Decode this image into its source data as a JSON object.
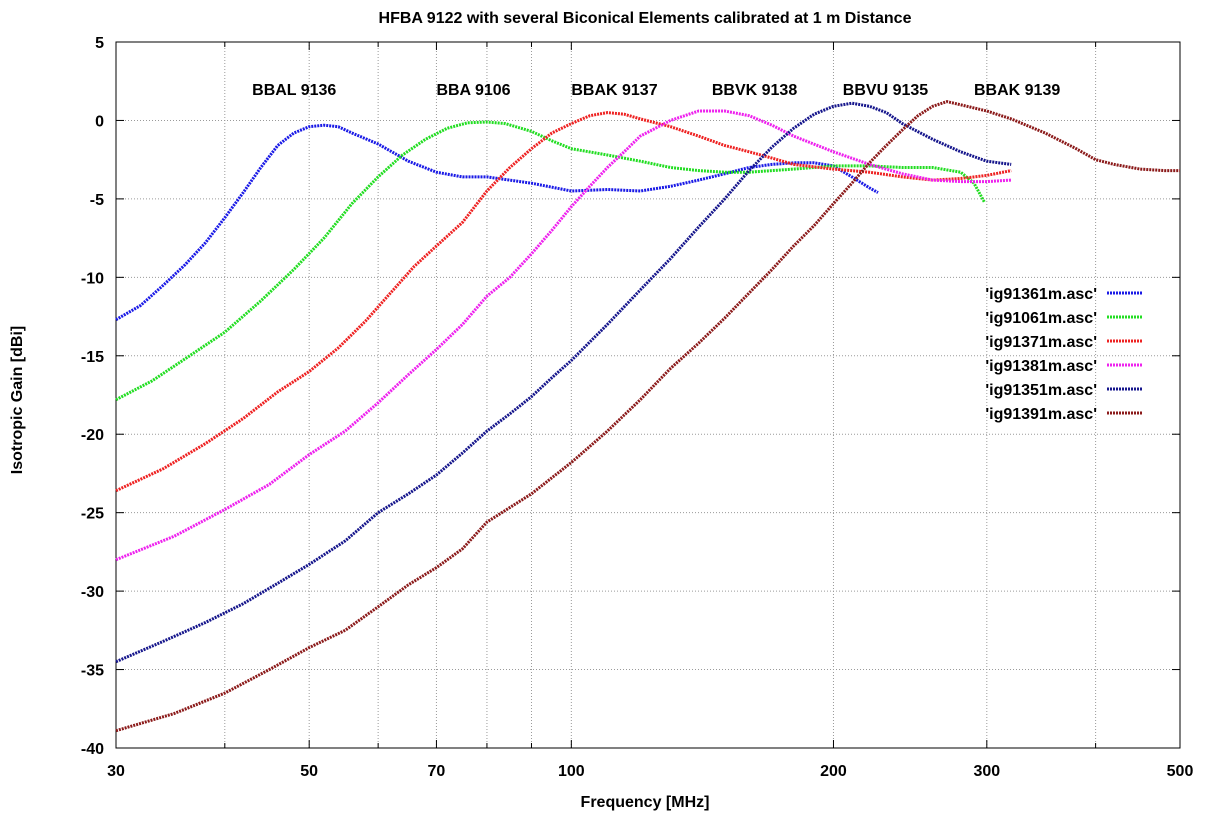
{
  "chart_data": {
    "type": "line",
    "title": "HFBA 9122 with several Biconical Elements calibrated at 1 m Distance",
    "xlabel": "Frequency [MHz]",
    "ylabel": "Isotropic Gain [dBi]",
    "xscale": "log",
    "xlim": [
      30,
      500
    ],
    "ylim": [
      -40,
      5
    ],
    "grid": true,
    "legend_position": "right",
    "x_major_ticks": [
      {
        "value": 30,
        "label": "30"
      },
      {
        "value": 50,
        "label": "50"
      },
      {
        "value": 70,
        "label": "70"
      },
      {
        "value": 100,
        "label": "100"
      },
      {
        "value": 200,
        "label": "200"
      },
      {
        "value": 300,
        "label": "300"
      },
      {
        "value": 500,
        "label": "500"
      }
    ],
    "x_minor_gridlines": [
      40,
      60,
      80,
      90,
      400
    ],
    "y_ticks": [
      {
        "value": 5,
        "label": "5"
      },
      {
        "value": 0,
        "label": "0"
      },
      {
        "value": -5,
        "label": "-5"
      },
      {
        "value": -10,
        "label": "-10"
      },
      {
        "value": -15,
        "label": "-15"
      },
      {
        "value": -20,
        "label": "-20"
      },
      {
        "value": -25,
        "label": "-25"
      },
      {
        "value": -30,
        "label": "-30"
      },
      {
        "value": -35,
        "label": "-35"
      },
      {
        "value": -40,
        "label": "-40"
      }
    ],
    "annotations": [
      {
        "text": "BBAL 9136",
        "x": 43,
        "y": 2
      },
      {
        "text": "BBA 9106",
        "x": 70,
        "y": 2
      },
      {
        "text": "BBAK 9137",
        "x": 100,
        "y": 2
      },
      {
        "text": "BBVK 9138",
        "x": 145,
        "y": 2
      },
      {
        "text": "BBVU 9135",
        "x": 205,
        "y": 2
      },
      {
        "text": "BBAK 9139",
        "x": 290,
        "y": 2
      }
    ],
    "series": [
      {
        "name": "'ig91361m.asc'",
        "color": "#1a1ae6",
        "points": [
          [
            30,
            -12.7
          ],
          [
            32,
            -11.8
          ],
          [
            34,
            -10.5
          ],
          [
            36,
            -9.2
          ],
          [
            38,
            -7.8
          ],
          [
            40,
            -6.2
          ],
          [
            42,
            -4.6
          ],
          [
            44,
            -3.0
          ],
          [
            46,
            -1.6
          ],
          [
            48,
            -0.8
          ],
          [
            50,
            -0.4
          ],
          [
            52,
            -0.3
          ],
          [
            54,
            -0.4
          ],
          [
            56,
            -0.8
          ],
          [
            60,
            -1.5
          ],
          [
            65,
            -2.6
          ],
          [
            70,
            -3.3
          ],
          [
            75,
            -3.6
          ],
          [
            80,
            -3.6
          ],
          [
            90,
            -4.0
          ],
          [
            100,
            -4.5
          ],
          [
            110,
            -4.4
          ],
          [
            120,
            -4.5
          ],
          [
            130,
            -4.2
          ],
          [
            140,
            -3.8
          ],
          [
            150,
            -3.4
          ],
          [
            160,
            -3.0
          ],
          [
            170,
            -2.8
          ],
          [
            180,
            -2.7
          ],
          [
            190,
            -2.7
          ],
          [
            200,
            -2.9
          ],
          [
            210,
            -3.6
          ],
          [
            220,
            -4.3
          ],
          [
            225,
            -4.6
          ]
        ]
      },
      {
        "name": "'ig91061m.asc'",
        "color": "#22dd22",
        "points": [
          [
            30,
            -17.8
          ],
          [
            33,
            -16.6
          ],
          [
            36,
            -15.2
          ],
          [
            40,
            -13.5
          ],
          [
            44,
            -11.5
          ],
          [
            48,
            -9.5
          ],
          [
            52,
            -7.5
          ],
          [
            56,
            -5.3
          ],
          [
            60,
            -3.6
          ],
          [
            64,
            -2.2
          ],
          [
            68,
            -1.2
          ],
          [
            72,
            -0.5
          ],
          [
            76,
            -0.15
          ],
          [
            80,
            -0.1
          ],
          [
            84,
            -0.2
          ],
          [
            90,
            -0.7
          ],
          [
            95,
            -1.3
          ],
          [
            100,
            -1.8
          ],
          [
            110,
            -2.2
          ],
          [
            120,
            -2.6
          ],
          [
            130,
            -3.0
          ],
          [
            140,
            -3.2
          ],
          [
            150,
            -3.3
          ],
          [
            160,
            -3.3
          ],
          [
            170,
            -3.2
          ],
          [
            180,
            -3.1
          ],
          [
            190,
            -3.0
          ],
          [
            200,
            -2.9
          ],
          [
            220,
            -2.9
          ],
          [
            240,
            -3.0
          ],
          [
            260,
            -3.0
          ],
          [
            280,
            -3.3
          ],
          [
            290,
            -4.0
          ],
          [
            298,
            -5.2
          ]
        ]
      },
      {
        "name": "'ig91371m.asc'",
        "color": "#ee2222",
        "points": [
          [
            30,
            -23.6
          ],
          [
            34,
            -22.2
          ],
          [
            38,
            -20.6
          ],
          [
            42,
            -19.0
          ],
          [
            46,
            -17.3
          ],
          [
            50,
            -16.0
          ],
          [
            54,
            -14.5
          ],
          [
            58,
            -12.8
          ],
          [
            62,
            -11.0
          ],
          [
            66,
            -9.3
          ],
          [
            70,
            -8.0
          ],
          [
            75,
            -6.5
          ],
          [
            80,
            -4.5
          ],
          [
            85,
            -3.0
          ],
          [
            90,
            -1.8
          ],
          [
            95,
            -0.8
          ],
          [
            100,
            -0.2
          ],
          [
            105,
            0.3
          ],
          [
            110,
            0.5
          ],
          [
            115,
            0.4
          ],
          [
            120,
            0.1
          ],
          [
            130,
            -0.4
          ],
          [
            140,
            -1.0
          ],
          [
            150,
            -1.6
          ],
          [
            160,
            -2.0
          ],
          [
            170,
            -2.4
          ],
          [
            180,
            -2.8
          ],
          [
            200,
            -3.1
          ],
          [
            220,
            -3.3
          ],
          [
            240,
            -3.6
          ],
          [
            260,
            -3.8
          ],
          [
            280,
            -3.7
          ],
          [
            300,
            -3.5
          ],
          [
            320,
            -3.2
          ]
        ]
      },
      {
        "name": "'ig91381m.asc'",
        "color": "#ee22ee",
        "points": [
          [
            30,
            -28.0
          ],
          [
            35,
            -26.5
          ],
          [
            40,
            -24.8
          ],
          [
            45,
            -23.2
          ],
          [
            50,
            -21.3
          ],
          [
            55,
            -19.8
          ],
          [
            60,
            -18.0
          ],
          [
            65,
            -16.2
          ],
          [
            70,
            -14.6
          ],
          [
            75,
            -13.0
          ],
          [
            80,
            -11.2
          ],
          [
            85,
            -10.0
          ],
          [
            90,
            -8.5
          ],
          [
            95,
            -7.0
          ],
          [
            100,
            -5.5
          ],
          [
            105,
            -4.2
          ],
          [
            110,
            -3.0
          ],
          [
            115,
            -2.0
          ],
          [
            120,
            -1.0
          ],
          [
            130,
            0.0
          ],
          [
            140,
            0.6
          ],
          [
            150,
            0.6
          ],
          [
            160,
            0.3
          ],
          [
            170,
            -0.3
          ],
          [
            180,
            -1.0
          ],
          [
            200,
            -2.0
          ],
          [
            220,
            -2.8
          ],
          [
            240,
            -3.4
          ],
          [
            260,
            -3.8
          ],
          [
            280,
            -3.9
          ],
          [
            300,
            -3.9
          ],
          [
            320,
            -3.8
          ]
        ]
      },
      {
        "name": "'ig91351m.asc'",
        "color": "#16168c",
        "points": [
          [
            30,
            -34.5
          ],
          [
            34,
            -33.2
          ],
          [
            38,
            -32.0
          ],
          [
            42,
            -30.8
          ],
          [
            46,
            -29.5
          ],
          [
            50,
            -28.3
          ],
          [
            55,
            -26.8
          ],
          [
            60,
            -25.0
          ],
          [
            65,
            -23.8
          ],
          [
            70,
            -22.6
          ],
          [
            75,
            -21.2
          ],
          [
            80,
            -19.8
          ],
          [
            85,
            -18.7
          ],
          [
            90,
            -17.6
          ],
          [
            95,
            -16.4
          ],
          [
            100,
            -15.3
          ],
          [
            110,
            -13.0
          ],
          [
            120,
            -10.8
          ],
          [
            130,
            -8.8
          ],
          [
            140,
            -6.8
          ],
          [
            150,
            -5.0
          ],
          [
            160,
            -3.2
          ],
          [
            170,
            -1.7
          ],
          [
            180,
            -0.5
          ],
          [
            190,
            0.4
          ],
          [
            200,
            0.9
          ],
          [
            210,
            1.1
          ],
          [
            220,
            0.9
          ],
          [
            230,
            0.5
          ],
          [
            240,
            -0.2
          ],
          [
            260,
            -1.2
          ],
          [
            280,
            -2.0
          ],
          [
            300,
            -2.6
          ],
          [
            320,
            -2.8
          ]
        ]
      },
      {
        "name": "'ig91391m.asc'",
        "color": "#8b1a1a",
        "points": [
          [
            30,
            -38.9
          ],
          [
            35,
            -37.8
          ],
          [
            40,
            -36.5
          ],
          [
            45,
            -35.0
          ],
          [
            50,
            -33.6
          ],
          [
            55,
            -32.5
          ],
          [
            60,
            -31.0
          ],
          [
            65,
            -29.6
          ],
          [
            70,
            -28.5
          ],
          [
            75,
            -27.3
          ],
          [
            80,
            -25.6
          ],
          [
            90,
            -23.8
          ],
          [
            100,
            -21.8
          ],
          [
            110,
            -19.8
          ],
          [
            120,
            -17.8
          ],
          [
            130,
            -15.8
          ],
          [
            140,
            -14.2
          ],
          [
            150,
            -12.6
          ],
          [
            160,
            -11.0
          ],
          [
            170,
            -9.5
          ],
          [
            180,
            -8.0
          ],
          [
            190,
            -6.7
          ],
          [
            200,
            -5.3
          ],
          [
            210,
            -4.0
          ],
          [
            220,
            -2.7
          ],
          [
            230,
            -1.6
          ],
          [
            240,
            -0.6
          ],
          [
            250,
            0.3
          ],
          [
            260,
            0.9
          ],
          [
            270,
            1.2
          ],
          [
            280,
            1.0
          ],
          [
            300,
            0.6
          ],
          [
            320,
            0.1
          ],
          [
            350,
            -0.8
          ],
          [
            380,
            -1.8
          ],
          [
            400,
            -2.5
          ],
          [
            420,
            -2.8
          ],
          [
            450,
            -3.1
          ],
          [
            480,
            -3.2
          ],
          [
            500,
            -3.2
          ]
        ]
      }
    ]
  }
}
